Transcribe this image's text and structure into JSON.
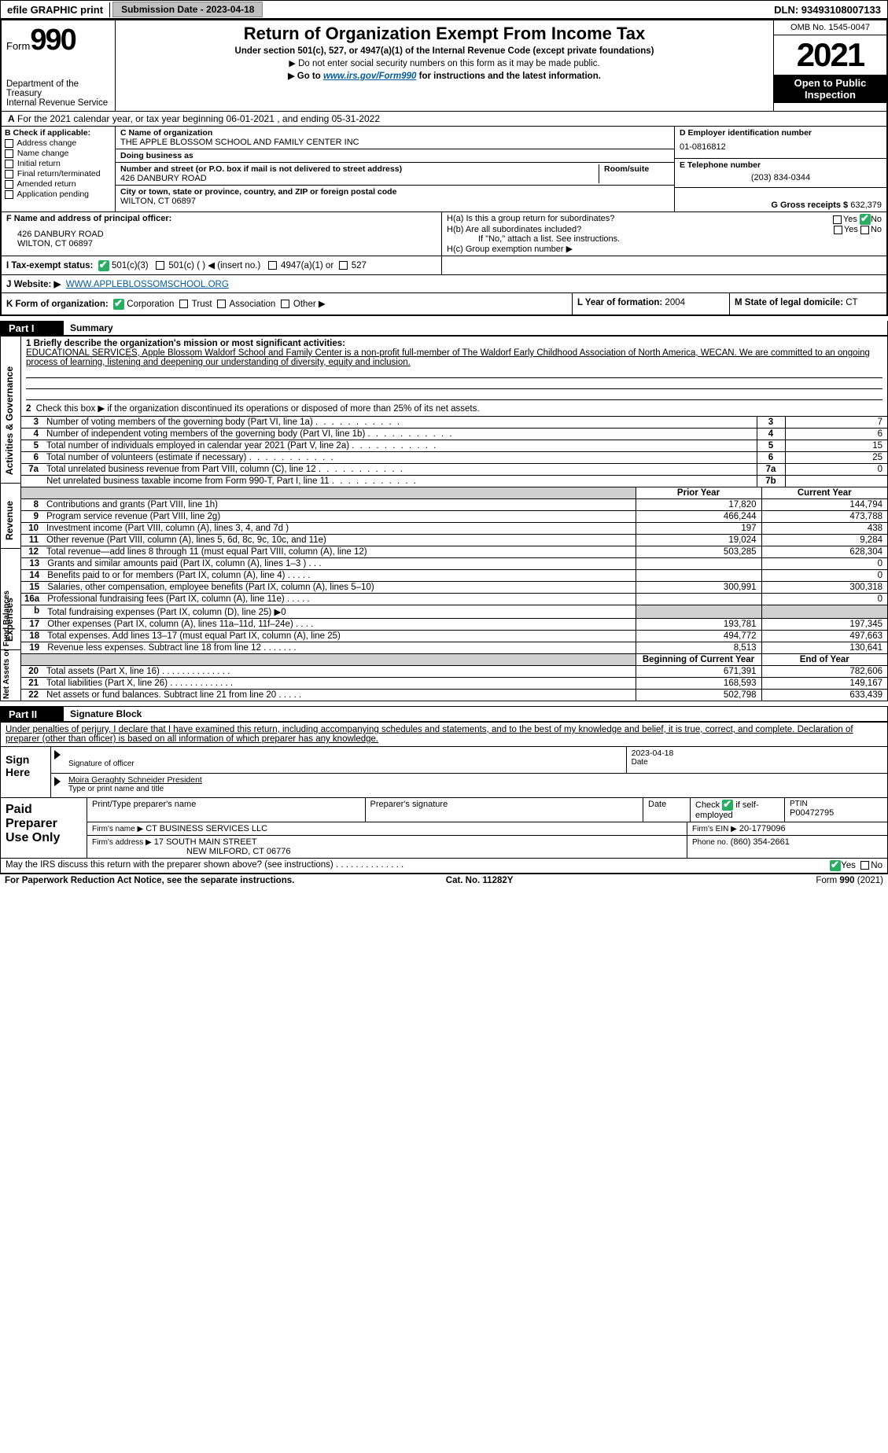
{
  "efile": {
    "label": "efile GRAPHIC print",
    "submission_btn": "Submission Date - 2023-04-18",
    "dln": "DLN: 93493108007133"
  },
  "header": {
    "form": "Form",
    "form_num": "990",
    "title": "Return of Organization Exempt From Income Tax",
    "under": "Under section 501(c), 527, or 4947(a)(1) of the Internal Revenue Code (except private foundations)",
    "caution": "Do not enter social security numbers on this form as it may be made public.",
    "goto_pre": "Go to ",
    "goto_link": "www.irs.gov/Form990",
    "goto_post": " for instructions and the latest information.",
    "dept": "Department of the Treasury\nInternal Revenue Service",
    "omb": "OMB No. 1545-0047",
    "year": "2021",
    "open": "Open to Public Inspection"
  },
  "row_a": "For the 2021 calendar year, or tax year beginning 06-01-2021    , and ending 05-31-2022",
  "col_b": {
    "label": "B Check if applicable:",
    "items": [
      "Address change",
      "Name change",
      "Initial return",
      "Final return/terminated",
      "Amended return",
      "Application pending"
    ]
  },
  "col_c": {
    "name_lbl": "C Name of organization",
    "name": "THE APPLE BLOSSOM SCHOOL AND FAMILY CENTER INC",
    "dba_lbl": "Doing business as",
    "dba": "",
    "addr_lbl": "Number and street (or P.O. box if mail is not delivered to street address)",
    "room_lbl": "Room/suite",
    "addr": "426 DANBURY ROAD",
    "city_lbl": "City or town, state or province, country, and ZIP or foreign postal code",
    "city": "WILTON, CT  06897"
  },
  "col_d": {
    "ein_lbl": "D Employer identification number",
    "ein": "01-0816812",
    "tel_lbl": "E Telephone number",
    "tel": "(203) 834-0344",
    "gross_lbl": "G Gross receipts $",
    "gross": "632,379"
  },
  "col_f": {
    "lbl": "F Name and address of principal officer:",
    "addr1": "426 DANBURY ROAD",
    "addr2": "WILTON, CT  06897"
  },
  "col_h": {
    "ha": "H(a)  Is this a group return for subordinates?",
    "hb": "H(b)  Are all subordinates included?",
    "hb_note": "If \"No,\" attach a list. See instructions.",
    "hc": "H(c)  Group exemption number ▶",
    "yes": "Yes",
    "no": "No"
  },
  "row_i": {
    "lbl": "I  Tax-exempt status:",
    "o1": "501(c)(3)",
    "o2": "501(c) (   ) ◀ (insert no.)",
    "o3": "4947(a)(1) or",
    "o4": "527"
  },
  "row_j": {
    "lbl": "J  Website: ▶",
    "val": "WWW.APPLEBLOSSOMSCHOOL.ORG"
  },
  "row_k": {
    "lbl": "K Form of organization:",
    "o1": "Corporation",
    "o2": "Trust",
    "o3": "Association",
    "o4": "Other ▶",
    "yof_lbl": "L Year of formation:",
    "yof": "2004",
    "dom_lbl": "M State of legal domicile:",
    "dom": "CT"
  },
  "part1": {
    "num": "Part I",
    "title": "Summary",
    "l1_lbl": "1  Briefly describe the organization's mission or most significant activities:",
    "l1_text": "EDUCATIONAL SERVICES, Apple Blossom Waldorf School and Family Center is a non-profit full-member of The Waldorf Early Childhood Association of North America, WECAN. We are committed to an ongoing process of learning, listening and deepening our understanding of diversity, equity and inclusion.",
    "l2": "Check this box ▶       if the organization discontinued its operations or disposed of more than 25% of its net assets.",
    "rows_gov": [
      {
        "n": "3",
        "t": "Number of voting members of the governing body (Part VI, line 1a)",
        "box": "3",
        "v": "7"
      },
      {
        "n": "4",
        "t": "Number of independent voting members of the governing body (Part VI, line 1b)",
        "box": "4",
        "v": "6"
      },
      {
        "n": "5",
        "t": "Total number of individuals employed in calendar year 2021 (Part V, line 2a)",
        "box": "5",
        "v": "15"
      },
      {
        "n": "6",
        "t": "Total number of volunteers (estimate if necessary)",
        "box": "6",
        "v": "25"
      },
      {
        "n": "7a",
        "t": "Total unrelated business revenue from Part VIII, column (C), line 12",
        "box": "7a",
        "v": "0"
      },
      {
        "n": "",
        "t": "Net unrelated business taxable income from Form 990-T, Part I, line 11",
        "box": "7b",
        "v": ""
      }
    ],
    "hdr_prior": "Prior Year",
    "hdr_curr": "Current Year",
    "rows_rev": [
      {
        "n": "8",
        "t": "Contributions and grants (Part VIII, line 1h)",
        "p": "17,820",
        "c": "144,794"
      },
      {
        "n": "9",
        "t": "Program service revenue (Part VIII, line 2g)",
        "p": "466,244",
        "c": "473,788"
      },
      {
        "n": "10",
        "t": "Investment income (Part VIII, column (A), lines 3, 4, and 7d )",
        "p": "197",
        "c": "438"
      },
      {
        "n": "11",
        "t": "Other revenue (Part VIII, column (A), lines 5, 6d, 8c, 9c, 10c, and 11e)",
        "p": "19,024",
        "c": "9,284"
      },
      {
        "n": "12",
        "t": "Total revenue—add lines 8 through 11 (must equal Part VIII, column (A), line 12)",
        "p": "503,285",
        "c": "628,304"
      }
    ],
    "rows_exp": [
      {
        "n": "13",
        "t": "Grants and similar amounts paid (Part IX, column (A), lines 1–3 )  .  .  .",
        "p": "",
        "c": "0"
      },
      {
        "n": "14",
        "t": "Benefits paid to or for members (Part IX, column (A), line 4)  .  .  .  .  .",
        "p": "",
        "c": "0"
      },
      {
        "n": "15",
        "t": "Salaries, other compensation, employee benefits (Part IX, column (A), lines 5–10)",
        "p": "300,991",
        "c": "300,318"
      },
      {
        "n": "16a",
        "t": "Professional fundraising fees (Part IX, column (A), line 11e)  .  .  .  .  .",
        "p": "",
        "c": "0"
      },
      {
        "n": "b",
        "t": "Total fundraising expenses (Part IX, column (D), line 25) ▶0",
        "p": "shade",
        "c": "shade"
      },
      {
        "n": "17",
        "t": "Other expenses (Part IX, column (A), lines 11a–11d, 11f–24e)  .  .  .  .",
        "p": "193,781",
        "c": "197,345"
      },
      {
        "n": "18",
        "t": "Total expenses. Add lines 13–17 (must equal Part IX, column (A), line 25)",
        "p": "494,772",
        "c": "497,663"
      },
      {
        "n": "19",
        "t": "Revenue less expenses. Subtract line 18 from line 12  .  .  .  .  .  .  .",
        "p": "8,513",
        "c": "130,641"
      }
    ],
    "hdr_boy": "Beginning of Current Year",
    "hdr_eoy": "End of Year",
    "rows_net": [
      {
        "n": "20",
        "t": "Total assets (Part X, line 16)  .  .  .  .  .  .  .  .  .  .  .  .  .  .",
        "p": "671,391",
        "c": "782,606"
      },
      {
        "n": "21",
        "t": "Total liabilities (Part X, line 26)  .  .  .  .  .  .  .  .  .  .  .  .  .",
        "p": "168,593",
        "c": "149,167"
      },
      {
        "n": "22",
        "t": "Net assets or fund balances. Subtract line 21 from line 20  .  .  .  .  .",
        "p": "502,798",
        "c": "633,439"
      }
    ],
    "tab_gov": "Activities & Governance",
    "tab_rev": "Revenue",
    "tab_exp": "Expenses",
    "tab_net": "Net Assets or Fund Balances"
  },
  "part2": {
    "num": "Part II",
    "title": "Signature Block",
    "decl": "Under penalties of perjury, I declare that I have examined this return, including accompanying schedules and statements, and to the best of my knowledge and belief, it is true, correct, and complete. Declaration of preparer (other than officer) is based on all information of which preparer has any knowledge.",
    "sign_here": "Sign Here",
    "sig_of": "Signature of officer",
    "sig_date": "2023-04-18",
    "date_lbl": "Date",
    "name": "Moira Geraghty Schneider President",
    "name_lbl": "Type or print name and title",
    "prep": "Paid Preparer Use Only",
    "p_name_lbl": "Print/Type preparer's name",
    "p_sig_lbl": "Preparer's signature",
    "p_date_lbl": "Date",
    "p_check": "Check",
    "p_ifself": "if self-employed",
    "p_ptin_lbl": "PTIN",
    "p_ptin": "P00472795",
    "firm_name_lbl": "Firm's name   ▶",
    "firm_name": "CT BUSINESS SERVICES LLC",
    "firm_ein_lbl": "Firm's EIN ▶",
    "firm_ein": "20-1779096",
    "firm_addr_lbl": "Firm's address ▶",
    "firm_addr1": "17 SOUTH MAIN STREET",
    "firm_addr2": "NEW MILFORD, CT  06776",
    "phone_lbl": "Phone no.",
    "phone": "(860) 354-2661",
    "discuss": "May the IRS discuss this return with the preparer shown above? (see instructions)  .  .  .  .  .  .  .  .  .  .  .  .  .  .",
    "yes": "Yes",
    "no": "No"
  },
  "foot": {
    "pra": "For Paperwork Reduction Act Notice, see the separate instructions.",
    "cat": "Cat. No. 11282Y",
    "form": "Form 990 (2021)"
  }
}
